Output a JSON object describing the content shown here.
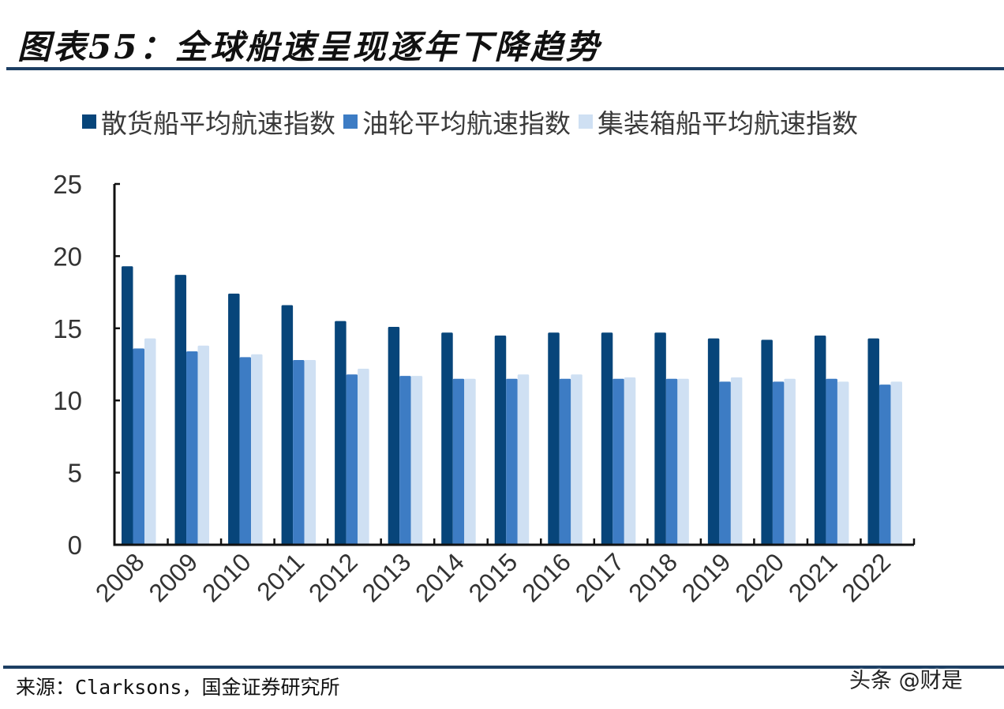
{
  "header": {
    "title": "图表55：全球船速呈现逐年下降趋势"
  },
  "legend": [
    {
      "label": "散货船平均航速指数",
      "color": "#07457a"
    },
    {
      "label": "油轮平均航速指数",
      "color": "#3d7cc4"
    },
    {
      "label": "集装箱船平均航速指数",
      "color": "#cfe0f3"
    }
  ],
  "footer": {
    "source": "来源：Clarksons，国金证券研究所",
    "watermark": "头条 @财是"
  },
  "chart_data": {
    "type": "bar",
    "title": "图表55：全球船速呈现逐年下降趋势",
    "xlabel": "",
    "ylabel": "",
    "ylim": [
      0,
      25
    ],
    "yticks": [
      0,
      5,
      10,
      15,
      20,
      25
    ],
    "grid": false,
    "legend_position": "top",
    "categories": [
      "2008",
      "2009",
      "2010",
      "2011",
      "2012",
      "2013",
      "2014",
      "2015",
      "2016",
      "2017",
      "2018",
      "2019",
      "2020",
      "2021",
      "2022"
    ],
    "series": [
      {
        "name": "散货船平均航速指数",
        "color": "#07457a",
        "values": [
          19.3,
          18.7,
          17.4,
          16.6,
          15.5,
          15.1,
          14.7,
          14.5,
          14.7,
          14.7,
          14.7,
          14.3,
          14.2,
          14.5,
          14.3
        ]
      },
      {
        "name": "油轮平均航速指数",
        "color": "#3d7cc4",
        "values": [
          13.6,
          13.4,
          13.0,
          12.8,
          11.8,
          11.7,
          11.5,
          11.5,
          11.5,
          11.5,
          11.5,
          11.3,
          11.3,
          11.5,
          11.1
        ]
      },
      {
        "name": "集装箱船平均航速指数",
        "color": "#cfe0f3",
        "values": [
          14.3,
          13.8,
          13.2,
          12.8,
          12.2,
          11.7,
          11.5,
          11.8,
          11.8,
          11.6,
          11.5,
          11.6,
          11.5,
          11.3,
          11.3
        ]
      }
    ],
    "source": "Clarksons，国金证券研究所"
  }
}
